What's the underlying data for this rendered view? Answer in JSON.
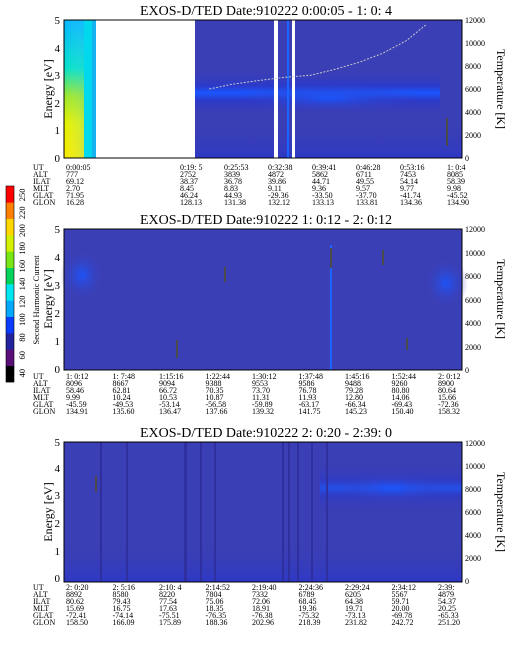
{
  "colors": {
    "background": "#3b3fb5",
    "band_mid": "#2a39cc",
    "band_core": "#1a56ff",
    "streak": "#2f2fa0",
    "white_gap": "#ffffff",
    "temperature_curve": "#c8c8c8",
    "bar": "#4a4a4a"
  },
  "colorbar": {
    "label": "Second Harmonic Current",
    "ticks": [
      "40",
      "60",
      "80",
      "100",
      "120",
      "140",
      "160",
      "180",
      "200",
      "220",
      "250"
    ],
    "colors": [
      "#000000",
      "#5a0f78",
      "#2323a0",
      "#0a3cff",
      "#00a8ff",
      "#00e6f0",
      "#00d25a",
      "#78e614",
      "#d2f000",
      "#ffd700",
      "#ff7f00",
      "#ff0000"
    ]
  },
  "ephemeris_labels": [
    "UT",
    "ALT",
    "ILAT",
    "MLT",
    "GLAT",
    "GLON"
  ],
  "chart_data": [
    {
      "type": "heatmap",
      "title": "EXOS-D/TED   Date:910222  0:00:05 - 1: 0: 4",
      "ylabel": "Energy [eV]",
      "ylabel_right": "Temperature [K]",
      "ylim": [
        0,
        5
      ],
      "yticks": [
        "0",
        "1",
        "2",
        "3",
        "4",
        "5"
      ],
      "ylim_right": [
        0,
        12000
      ],
      "yticks_right": [
        "0",
        "2000",
        "4000",
        "6000",
        "8000",
        "10000",
        "12000"
      ],
      "temperature_curve": [
        {
          "x": 0.365,
          "y": 6000
        },
        {
          "x": 0.42,
          "y": 6400
        },
        {
          "x": 0.48,
          "y": 6700
        },
        {
          "x": 0.55,
          "y": 7000
        },
        {
          "x": 0.62,
          "y": 7200
        },
        {
          "x": 0.68,
          "y": 7700
        },
        {
          "x": 0.74,
          "y": 8300
        },
        {
          "x": 0.8,
          "y": 9100
        },
        {
          "x": 0.86,
          "y": 10200
        },
        {
          "x": 0.91,
          "y": 11600
        }
      ],
      "ephemeris": [
        {
          "UT": "0:00:05",
          "ALT": "777",
          "ILAT": "69.12",
          "MLT": "2.70",
          "GLAT": "71.95",
          "GLON": "16.28"
        },
        {
          "UT": "0:19: 5",
          "ALT": "2752",
          "ILAT": "38.37",
          "MLT": "8.45",
          "GLAT": "46.24",
          "GLON": "128.13"
        },
        {
          "UT": "0:25:53",
          "ALT": "3839",
          "ILAT": "36.78",
          "MLT": "8.83",
          "GLAT": "44.93",
          "GLON": "131.38"
        },
        {
          "UT": "0:32:38",
          "ALT": "4872",
          "ILAT": "39.86",
          "MLT": "9.11",
          "GLAT": "-29.36",
          "GLON": "132.12"
        },
        {
          "UT": "0:39:41",
          "ALT": "5862",
          "ILAT": "44.71",
          "MLT": "9.36",
          "GLAT": "-33.50",
          "GLON": "133.13"
        },
        {
          "UT": "0:46:28",
          "ALT": "6711",
          "ILAT": "49.55",
          "MLT": "9.57",
          "GLAT": "-37.70",
          "GLON": "133.81"
        },
        {
          "UT": "0:53:16",
          "ALT": "7453",
          "ILAT": "54.14",
          "MLT": "9.77",
          "GLAT": "-41.74",
          "GLON": "134.36"
        },
        {
          "UT": "1: 0:4",
          "ALT": "8085",
          "ILAT": "58.39",
          "MLT": "9.98",
          "GLAT": "-45.52",
          "GLON": "134.90"
        }
      ]
    },
    {
      "type": "heatmap",
      "title": "EXOS-D/TED   Date:910222  1: 0:12 - 2: 0:12",
      "ylabel": "Energy [eV]",
      "ylabel_right": "Temperature [K]",
      "ylim": [
        0,
        5
      ],
      "yticks": [
        "0",
        "1",
        "2",
        "3",
        "4",
        "5"
      ],
      "ylim_right": [
        0,
        12000
      ],
      "yticks_right": [
        "0",
        "2000",
        "4000",
        "6000",
        "8000",
        "10000",
        "12000"
      ],
      "ephemeris": [
        {
          "UT": "1: 0:12",
          "ALT": "8096",
          "ILAT": "58.46",
          "MLT": "9.99",
          "GLAT": "-45.59",
          "GLON": "134.91"
        },
        {
          "UT": "1: 7:48",
          "ALT": "8667",
          "ILAT": "62.81",
          "MLT": "10.24",
          "GLAT": "-49.53",
          "GLON": "135.60"
        },
        {
          "UT": "1:15:16",
          "ALT": "9094",
          "ILAT": "66.72",
          "MLT": "10.53",
          "GLAT": "-53.14",
          "GLON": "136.47"
        },
        {
          "UT": "1:22:44",
          "ALT": "9388",
          "ILAT": "70.35",
          "MLT": "10.87",
          "GLAT": "-56.58",
          "GLON": "137.66"
        },
        {
          "UT": "1:30:12",
          "ALT": "9553",
          "ILAT": "73.70",
          "MLT": "11.31",
          "GLAT": "-59.89",
          "GLON": "139.32"
        },
        {
          "UT": "1:37:48",
          "ALT": "9586",
          "ILAT": "76.78",
          "MLT": "11.93",
          "GLAT": "-63.17",
          "GLON": "141.75"
        },
        {
          "UT": "1:45:16",
          "ALT": "9488",
          "ILAT": "79.28",
          "MLT": "12.80",
          "GLAT": "-66.34",
          "GLON": "145.23"
        },
        {
          "UT": "1:52:44",
          "ALT": "9260",
          "ILAT": "80.80",
          "MLT": "14.06",
          "GLAT": "-69.43",
          "GLON": "150.40"
        },
        {
          "UT": "2: 0:12",
          "ALT": "8900",
          "ILAT": "80.64",
          "MLT": "15.66",
          "GLAT": "-72.36",
          "GLON": "158.32"
        }
      ]
    },
    {
      "type": "heatmap",
      "title": "EXOS-D/TED   Date:910222  2: 0:20 - 2:39: 0",
      "ylabel": "Energy [eV]",
      "ylabel_right": "Temperature [K]",
      "ylim": [
        0,
        5
      ],
      "yticks": [
        "0",
        "1",
        "2",
        "3",
        "4",
        "5"
      ],
      "ylim_right": [
        0,
        12000
      ],
      "yticks_right": [
        "0",
        "2000",
        "4000",
        "6000",
        "8000",
        "10000",
        "12000"
      ],
      "ephemeris": [
        {
          "UT": "2: 0:20",
          "ALT": "8892",
          "ILAT": "80.62",
          "MLT": "15.69",
          "GLAT": "-72.41",
          "GLON": "158.50"
        },
        {
          "UT": "2: 5:16",
          "ALT": "8580",
          "ILAT": "79.43",
          "MLT": "16.75",
          "GLAT": "-74.14",
          "GLON": "166.09"
        },
        {
          "UT": "2:10: 4",
          "ALT": "8220",
          "ILAT": "77.54",
          "MLT": "17.63",
          "GLAT": "-75.51",
          "GLON": "175.89"
        },
        {
          "UT": "2:14:52",
          "ALT": "7804",
          "ILAT": "75.06",
          "MLT": "18.35",
          "GLAT": "-76.35",
          "GLON": "188.36"
        },
        {
          "UT": "2:19:40",
          "ALT": "7332",
          "ILAT": "72.06",
          "MLT": "18.91",
          "GLAT": "-76.38",
          "GLON": "202.96"
        },
        {
          "UT": "2:24:36",
          "ALT": "6789",
          "ILAT": "68.45",
          "MLT": "19.36",
          "GLAT": "-75.32",
          "GLON": "218.39"
        },
        {
          "UT": "2:29:24",
          "ALT": "6205",
          "ILAT": "64.38",
          "MLT": "19.71",
          "GLAT": "-73.13",
          "GLON": "231.82"
        },
        {
          "UT": "2:34:12",
          "ALT": "5567",
          "ILAT": "59.71",
          "MLT": "20.00",
          "GLAT": "-69.78",
          "GLON": "242.72"
        },
        {
          "UT": "2:39:",
          "ALT": "4879",
          "ILAT": "54.37",
          "MLT": "20.25",
          "GLAT": "-65.33",
          "GLON": "251.20"
        }
      ]
    }
  ]
}
